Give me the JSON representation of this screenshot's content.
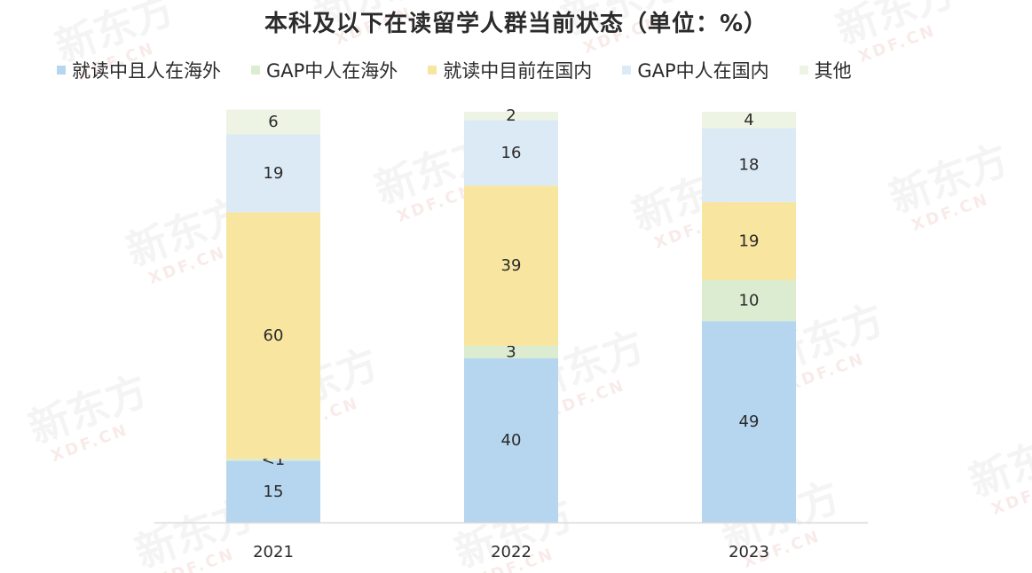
{
  "chart_data": {
    "type": "bar",
    "stacked": true,
    "title": "本科及以下在读留学人群当前状态（单位：%）",
    "categories": [
      "2021",
      "2022",
      "2023"
    ],
    "series": [
      {
        "name": "就读中且人在海外",
        "values": [
          15,
          40,
          49
        ],
        "labels": [
          "15",
          "40",
          "49"
        ],
        "color": "#b5d6ee"
      },
      {
        "name": "GAP中人在海外",
        "values": [
          0.5,
          3,
          10
        ],
        "labels": [
          "<1",
          "3",
          "10"
        ],
        "color": "#dbecd0"
      },
      {
        "name": "就读中目前在国内",
        "values": [
          60,
          39,
          19
        ],
        "labels": [
          "60",
          "39",
          "19"
        ],
        "color": "#f8e59f"
      },
      {
        "name": "GAP中人在国内",
        "values": [
          19,
          16,
          18
        ],
        "labels": [
          "19",
          "16",
          "18"
        ],
        "color": "#dceaf6"
      },
      {
        "name": "其他",
        "values": [
          6,
          2,
          4
        ],
        "labels": [
          "6",
          "2",
          "4"
        ],
        "color": "#edf4e4"
      }
    ],
    "ylim": [
      0,
      100
    ],
    "legend_position": "top",
    "grid": false
  },
  "watermark_text": "新东方 XDF.CN"
}
